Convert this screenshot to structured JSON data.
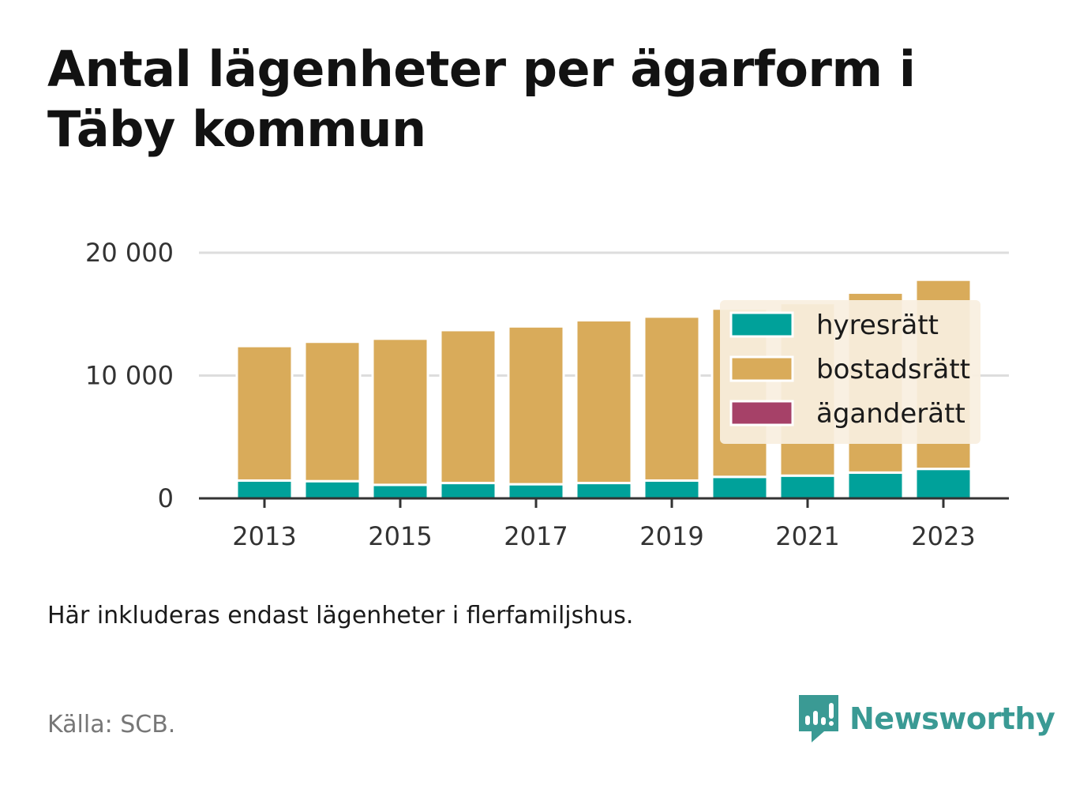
{
  "title": "Antal lägenheter per ägarform i Täby kommun",
  "note": "Här inkluderas endast lägenheter i flerfamiljshus.",
  "source": "Källa: SCB.",
  "brand": {
    "name": "Newsworthy",
    "icon": "newsworthy-logo-icon",
    "color": "#3a9a94"
  },
  "colors": {
    "hyresratt": "#00a19a",
    "bostadsratt": "#d9ab5a",
    "aganderatt": "#a64168",
    "grid": "#dddddd",
    "axis": "#333333",
    "legend_bg": "#f8efe0"
  },
  "chart_data": {
    "type": "bar",
    "stacked": true,
    "categories": [
      2013,
      2014,
      2015,
      2016,
      2017,
      2018,
      2019,
      2020,
      2021,
      2022,
      2023
    ],
    "x_tick_labels": [
      "2013",
      "2015",
      "2017",
      "2019",
      "2021",
      "2023"
    ],
    "series": [
      {
        "name": "hyresrätt",
        "color": "#00a19a",
        "values": [
          1450,
          1400,
          1100,
          1250,
          1150,
          1250,
          1450,
          1750,
          1850,
          2100,
          2400
        ]
      },
      {
        "name": "bostadsrätt",
        "color": "#d9ab5a",
        "values": [
          10950,
          11350,
          11900,
          12450,
          12850,
          13250,
          13350,
          13700,
          14050,
          14650,
          15400
        ]
      },
      {
        "name": "äganderätt",
        "color": "#a64168",
        "values": [
          0,
          0,
          0,
          0,
          0,
          0,
          0,
          0,
          0,
          0,
          0
        ]
      }
    ],
    "y_ticks": [
      0,
      10000,
      20000
    ],
    "y_tick_labels": [
      "0",
      "10 000",
      "20 000"
    ],
    "ylim": [
      0,
      20000
    ],
    "grid": true,
    "legend_position": "right"
  }
}
